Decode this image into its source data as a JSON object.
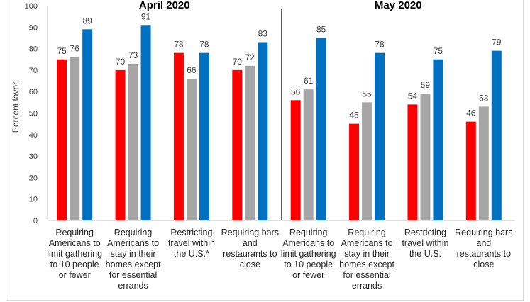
{
  "chart_data": {
    "type": "bar",
    "ylabel": "Percent favor",
    "ylim": [
      0,
      100
    ],
    "yticks": [
      0,
      10,
      20,
      30,
      40,
      50,
      60,
      70,
      80,
      90,
      100
    ],
    "grid": false,
    "colors": [
      "#ff0000",
      "#a6a6a6",
      "#0070c0"
    ],
    "panels": [
      {
        "title": "April 2020",
        "categories": [
          "Requiring\nAmericans to\nlimit gathering\nto 10 people\nor fewer",
          "Requiring\nAmericans to\nstay in their\nhomes except\nfor essential\nerrands",
          "Restricting\ntravel within\nthe U.S.*",
          "Requiring bars\nand\nrestaurants to\nclose"
        ],
        "series": [
          {
            "values": [
              75,
              70,
              78,
              70
            ]
          },
          {
            "values": [
              76,
              73,
              66,
              72
            ]
          },
          {
            "values": [
              89,
              91,
              78,
              83
            ]
          }
        ]
      },
      {
        "title": "May 2020",
        "categories": [
          "Requiring\nAmericans to\nlimit gathering\nto 10 people\nor fewer",
          "Requiring\nAmericans to\nstay in their\nhomes except\nfor essential\nerrands",
          "Restricting\ntravel within\nthe U.S.",
          "Requiring bars\nand\nrestaurants to\nclose"
        ],
        "series": [
          {
            "values": [
              56,
              45,
              54,
              46
            ]
          },
          {
            "values": [
              61,
              55,
              59,
              53
            ]
          },
          {
            "values": [
              85,
              78,
              75,
              79
            ]
          }
        ]
      }
    ]
  }
}
